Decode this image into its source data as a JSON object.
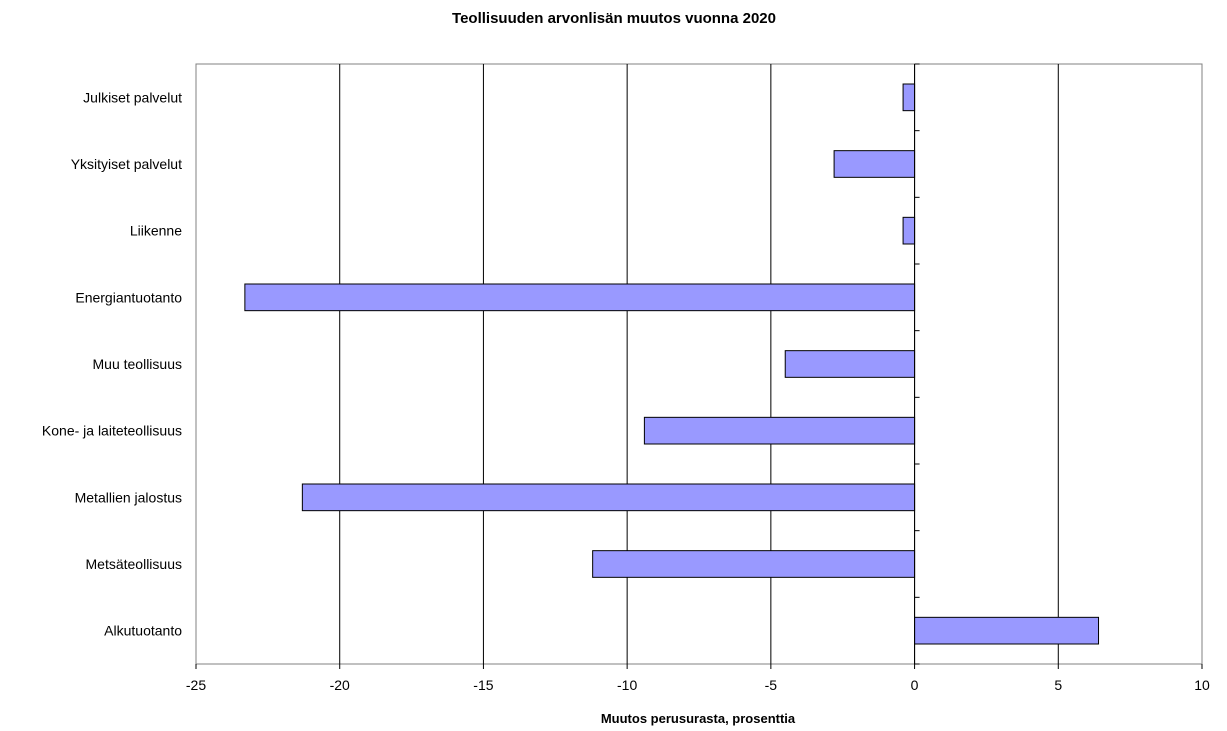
{
  "chart_data": {
    "type": "bar",
    "orientation": "horizontal",
    "title": "Teollisuuden arvonlisän muutos vuonna 2020",
    "xlabel": "Muutos perusurasta, prosenttia",
    "ylabel": "",
    "xlim": [
      -25,
      10
    ],
    "xticks": [
      -25,
      -20,
      -15,
      -10,
      -5,
      0,
      5,
      10
    ],
    "grid": "vertical",
    "legend": "none",
    "bar_color": "#9999ff",
    "categories": [
      "Julkiset palvelut",
      "Yksityiset palvelut",
      "Liikenne",
      "Energiantuotanto",
      "Muu teollisuus",
      "Kone- ja laiteteollisuus",
      "Metallien jalostus",
      "Metsäteollisuus",
      "Alkutuotanto"
    ],
    "values": [
      -0.4,
      -2.8,
      -0.4,
      -23.3,
      -4.5,
      -9.4,
      -21.3,
      -11.2,
      6.4
    ]
  }
}
